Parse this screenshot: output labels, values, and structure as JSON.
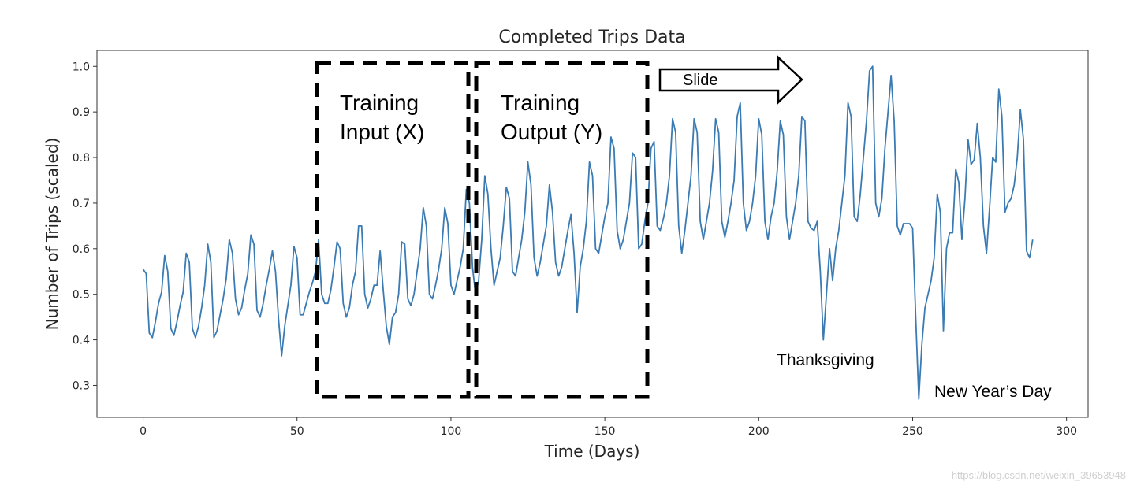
{
  "chart_data": {
    "type": "line",
    "title": "Completed Trips Data",
    "xlabel": "Time (Days)",
    "ylabel": "Number of Trips (scaled)",
    "xlim": [
      -15,
      307
    ],
    "ylim": [
      0.23,
      1.035
    ],
    "xticks": [
      0,
      50,
      100,
      150,
      200,
      250,
      300
    ],
    "yticks": [
      0.3,
      0.4,
      0.5,
      0.6,
      0.7,
      0.8,
      0.9,
      1.0
    ],
    "grid": false,
    "series": [
      {
        "name": "Completed Trips",
        "color": "#3b7bb4",
        "y": [
          0.555,
          0.545,
          0.415,
          0.405,
          0.44,
          0.48,
          0.505,
          0.585,
          0.55,
          0.425,
          0.41,
          0.44,
          0.475,
          0.505,
          0.59,
          0.57,
          0.425,
          0.405,
          0.43,
          0.47,
          0.52,
          0.61,
          0.57,
          0.405,
          0.42,
          0.455,
          0.49,
          0.535,
          0.62,
          0.59,
          0.49,
          0.455,
          0.47,
          0.51,
          0.545,
          0.63,
          0.61,
          0.465,
          0.45,
          0.48,
          0.52,
          0.555,
          0.595,
          0.55,
          0.445,
          0.365,
          0.43,
          0.475,
          0.52,
          0.605,
          0.58,
          0.455,
          0.455,
          0.48,
          0.505,
          0.525,
          0.55,
          0.62,
          0.5,
          0.48,
          0.48,
          0.51,
          0.56,
          0.615,
          0.6,
          0.48,
          0.45,
          0.47,
          0.52,
          0.55,
          0.65,
          0.65,
          0.5,
          0.47,
          0.49,
          0.52,
          0.52,
          0.595,
          0.51,
          0.43,
          0.39,
          0.45,
          0.46,
          0.5,
          0.615,
          0.61,
          0.49,
          0.475,
          0.5,
          0.55,
          0.6,
          0.69,
          0.65,
          0.5,
          0.49,
          0.52,
          0.555,
          0.6,
          0.69,
          0.655,
          0.52,
          0.5,
          0.53,
          0.56,
          0.6,
          0.73,
          0.7,
          0.56,
          0.5,
          0.53,
          0.62,
          0.76,
          0.72,
          0.6,
          0.52,
          0.55,
          0.58,
          0.65,
          0.735,
          0.71,
          0.55,
          0.54,
          0.58,
          0.62,
          0.68,
          0.79,
          0.74,
          0.58,
          0.54,
          0.57,
          0.61,
          0.65,
          0.74,
          0.68,
          0.57,
          0.54,
          0.56,
          0.6,
          0.64,
          0.675,
          0.59,
          0.46,
          0.56,
          0.6,
          0.66,
          0.79,
          0.76,
          0.6,
          0.59,
          0.63,
          0.67,
          0.7,
          0.845,
          0.82,
          0.64,
          0.6,
          0.62,
          0.66,
          0.7,
          0.81,
          0.8,
          0.6,
          0.61,
          0.66,
          0.7,
          0.82,
          0.835,
          0.65,
          0.64,
          0.665,
          0.7,
          0.76,
          0.885,
          0.855,
          0.65,
          0.59,
          0.64,
          0.7,
          0.76,
          0.885,
          0.855,
          0.66,
          0.62,
          0.66,
          0.7,
          0.77,
          0.885,
          0.855,
          0.66,
          0.625,
          0.66,
          0.7,
          0.75,
          0.89,
          0.92,
          0.7,
          0.64,
          0.66,
          0.7,
          0.76,
          0.885,
          0.85,
          0.66,
          0.62,
          0.67,
          0.7,
          0.77,
          0.88,
          0.85,
          0.67,
          0.62,
          0.66,
          0.7,
          0.76,
          0.89,
          0.88,
          0.66,
          0.645,
          0.64,
          0.66,
          0.55,
          0.4,
          0.5,
          0.6,
          0.53,
          0.6,
          0.64,
          0.7,
          0.76,
          0.92,
          0.89,
          0.67,
          0.66,
          0.72,
          0.8,
          0.88,
          0.99,
          1.0,
          0.7,
          0.67,
          0.71,
          0.82,
          0.9,
          0.98,
          0.88,
          0.65,
          0.63,
          0.655,
          0.655,
          0.655,
          0.645,
          0.45,
          0.27,
          0.39,
          0.47,
          0.5,
          0.53,
          0.58,
          0.72,
          0.68,
          0.42,
          0.6,
          0.635,
          0.635,
          0.775,
          0.745,
          0.62,
          0.71,
          0.84,
          0.785,
          0.795,
          0.875,
          0.8,
          0.65,
          0.59,
          0.69,
          0.8,
          0.79,
          0.95,
          0.89,
          0.68,
          0.7,
          0.71,
          0.74,
          0.8,
          0.905,
          0.84,
          0.595,
          0.58,
          0.62
        ]
      }
    ],
    "annotations": {
      "training_input": "Training\nInput (X)",
      "training_output": "Training\nOutput (Y)",
      "slide": "Slide",
      "thanksgiving": "Thanksgiving",
      "new_years": "New Year’s Day"
    }
  },
  "watermark": "https://blog.csdn.net/weixin_39653948"
}
